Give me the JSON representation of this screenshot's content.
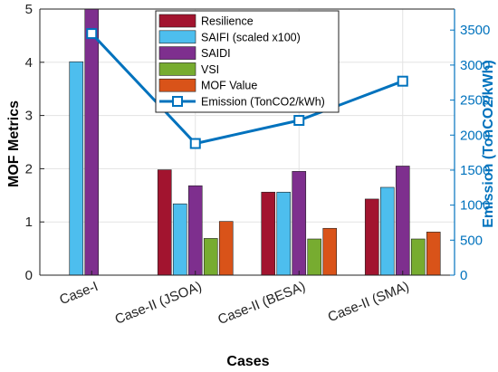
{
  "chart_data": {
    "type": "bar",
    "xlabel": "Cases",
    "ylabel": "MOF Metrics",
    "ylabel_right": "Emission (TonCO2/kWh)",
    "categories": [
      "Case-I",
      "Case-II (JSOA)",
      "Case-II (BESA)",
      "Case-II (SMA)"
    ],
    "ylim": [
      0,
      5
    ],
    "yticks": [
      "0",
      "1",
      "2",
      "3",
      "4",
      "5"
    ],
    "ylim_right": [
      0,
      3800
    ],
    "yticks_right": [
      "0",
      "500",
      "1000",
      "1500",
      "2000",
      "2500",
      "3000",
      "3500"
    ],
    "grid": true,
    "legend_position": "top-center",
    "series": [
      {
        "name": "Resilience",
        "color": "#a2142f",
        "values": [
          0,
          1.98,
          1.56,
          1.43
        ]
      },
      {
        "name": "SAIFI (scaled x100)",
        "color": "#4dbeee",
        "values": [
          4.01,
          1.34,
          1.56,
          1.65
        ]
      },
      {
        "name": "SAIDI",
        "color": "#7e2f8e",
        "values": [
          5.0,
          1.68,
          1.95,
          2.05
        ]
      },
      {
        "name": "VSI",
        "color": "#77ac30",
        "values": [
          0,
          0.69,
          0.68,
          0.68
        ]
      },
      {
        "name": "MOF Value",
        "color": "#d95319",
        "values": [
          0,
          1.01,
          0.88,
          0.81
        ]
      }
    ],
    "line_series": {
      "name": "Emission (TonCO2/kWh)",
      "color": "#0072bd",
      "axis": "right",
      "values": [
        3450,
        1880,
        2210,
        2770
      ]
    }
  }
}
